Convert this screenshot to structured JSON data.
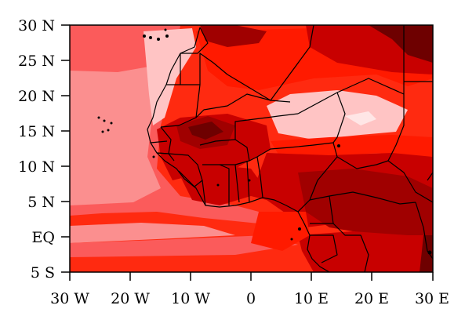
{
  "map": {
    "extent": {
      "lon_min": -30,
      "lon_max": 30,
      "lat_min": -5,
      "lat_max": 30
    },
    "palette": {
      "lightest": "#ffc4c4",
      "light": "#fb8f8f",
      "pink": "#fb5b5b",
      "red": "#ff2a10",
      "bright_red": "#ff1a00",
      "dark_red": "#c80000",
      "darker_red": "#a00000",
      "darkest_red": "#6e0000",
      "boundary": "#000000"
    }
  },
  "axes": {
    "y_ticks": [
      {
        "value": 30,
        "label": "30 N"
      },
      {
        "value": 25,
        "label": "25 N"
      },
      {
        "value": 20,
        "label": "20 N"
      },
      {
        "value": 15,
        "label": "15 N"
      },
      {
        "value": 10,
        "label": "10 N"
      },
      {
        "value": 5,
        "label": "5 N"
      },
      {
        "value": 0,
        "label": "EQ"
      },
      {
        "value": -5,
        "label": "5 S"
      }
    ],
    "x_ticks": [
      {
        "value": -30,
        "label": "30 W"
      },
      {
        "value": -20,
        "label": "20 W"
      },
      {
        "value": -10,
        "label": "10 W"
      },
      {
        "value": 0,
        "label": "0"
      },
      {
        "value": 10,
        "label": "10 E"
      },
      {
        "value": 20,
        "label": "20 E"
      },
      {
        "value": 30,
        "label": "30 E"
      }
    ]
  }
}
